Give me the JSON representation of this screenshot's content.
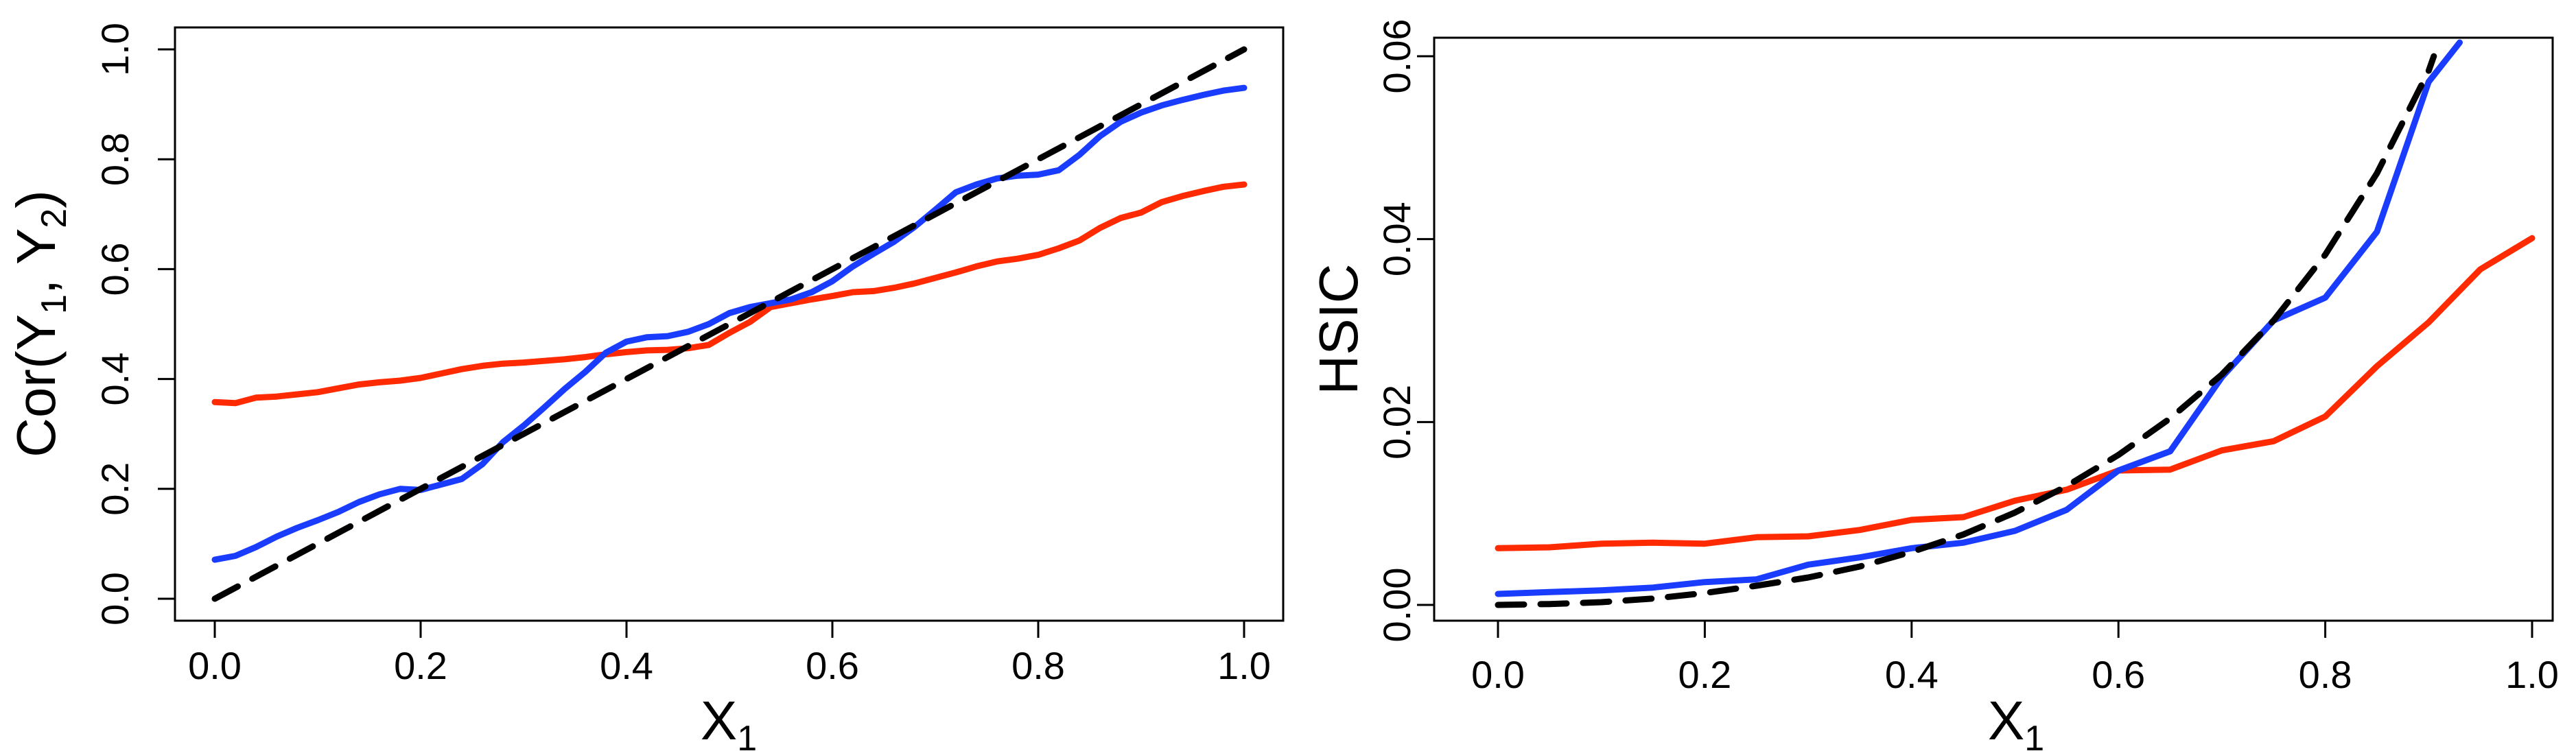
{
  "chart_data": [
    {
      "type": "line",
      "title": "",
      "xlabel": "X",
      "xlabel_sub": "1",
      "ylabel": "Cor(Y",
      "ylabel_sub1": "1",
      "ylabel_mid": ", Y",
      "ylabel_sub2": "2",
      "ylabel_end": ")",
      "xlim": [
        0,
        1
      ],
      "ylim": [
        0,
        1
      ],
      "xticks": [
        0.0,
        0.2,
        0.4,
        0.6,
        0.8,
        1.0
      ],
      "xtick_labels": [
        "0.0",
        "0.2",
        "0.4",
        "0.6",
        "0.8",
        "1.0"
      ],
      "yticks": [
        0.0,
        0.2,
        0.4,
        0.6,
        0.8,
        1.0
      ],
      "ytick_labels": [
        "0.0",
        "0.2",
        "0.4",
        "0.6",
        "0.8",
        "1.0"
      ],
      "grid": false,
      "series": [
        {
          "color": "#ff2a00",
          "dash": "solid",
          "x": [
            0.0,
            0.02,
            0.04,
            0.06,
            0.08,
            0.1,
            0.12,
            0.14,
            0.16,
            0.18,
            0.2,
            0.22,
            0.24,
            0.26,
            0.28,
            0.3,
            0.32,
            0.34,
            0.36,
            0.38,
            0.4,
            0.42,
            0.44,
            0.46,
            0.48,
            0.5,
            0.52,
            0.54,
            0.56,
            0.58,
            0.6,
            0.62,
            0.64,
            0.66,
            0.68,
            0.7,
            0.72,
            0.74,
            0.76,
            0.78,
            0.8,
            0.82,
            0.84,
            0.86,
            0.88,
            0.9,
            0.92,
            0.94,
            0.96,
            0.98,
            1.0
          ],
          "y": [
            0.358,
            0.356,
            0.366,
            0.368,
            0.372,
            0.376,
            0.383,
            0.39,
            0.394,
            0.397,
            0.402,
            0.41,
            0.418,
            0.424,
            0.428,
            0.43,
            0.433,
            0.436,
            0.44,
            0.445,
            0.449,
            0.452,
            0.453,
            0.456,
            0.462,
            0.484,
            0.504,
            0.531,
            0.538,
            0.545,
            0.551,
            0.558,
            0.56,
            0.566,
            0.574,
            0.584,
            0.594,
            0.605,
            0.614,
            0.619,
            0.626,
            0.638,
            0.652,
            0.675,
            0.693,
            0.703,
            0.722,
            0.733,
            0.742,
            0.75,
            0.754
          ]
        },
        {
          "color": "#1a3cff",
          "dash": "solid",
          "x": [
            0.0,
            0.02,
            0.04,
            0.06,
            0.08,
            0.1,
            0.12,
            0.14,
            0.16,
            0.18,
            0.2,
            0.22,
            0.24,
            0.26,
            0.28,
            0.3,
            0.32,
            0.34,
            0.36,
            0.38,
            0.4,
            0.42,
            0.44,
            0.46,
            0.48,
            0.5,
            0.52,
            0.54,
            0.56,
            0.58,
            0.6,
            0.62,
            0.64,
            0.66,
            0.68,
            0.7,
            0.72,
            0.74,
            0.76,
            0.78,
            0.8,
            0.82,
            0.84,
            0.86,
            0.88,
            0.9,
            0.92,
            0.94,
            0.96,
            0.98,
            1.0
          ],
          "y": [
            0.071,
            0.078,
            0.094,
            0.113,
            0.129,
            0.143,
            0.158,
            0.176,
            0.19,
            0.2,
            0.198,
            0.208,
            0.218,
            0.245,
            0.285,
            0.315,
            0.348,
            0.382,
            0.413,
            0.448,
            0.468,
            0.476,
            0.478,
            0.486,
            0.5,
            0.52,
            0.531,
            0.538,
            0.545,
            0.558,
            0.578,
            0.605,
            0.628,
            0.65,
            0.677,
            0.708,
            0.74,
            0.754,
            0.765,
            0.77,
            0.772,
            0.78,
            0.808,
            0.842,
            0.868,
            0.885,
            0.898,
            0.908,
            0.917,
            0.925,
            0.93
          ]
        },
        {
          "color": "#000000",
          "dash": "dashed",
          "x": [
            0.0,
            1.0
          ],
          "y": [
            0.0,
            1.0
          ]
        }
      ]
    },
    {
      "type": "line",
      "title": "",
      "xlabel": "X",
      "xlabel_sub": "1",
      "ylabel": "HSIC",
      "xlim": [
        0,
        1
      ],
      "ylim": [
        0,
        0.06
      ],
      "xticks": [
        0.0,
        0.2,
        0.4,
        0.6,
        0.8,
        1.0
      ],
      "xtick_labels": [
        "0.0",
        "0.2",
        "0.4",
        "0.6",
        "0.8",
        "1.0"
      ],
      "yticks": [
        0.0,
        0.02,
        0.04,
        0.06
      ],
      "ytick_labels": [
        "0.00",
        "0.02",
        "0.04",
        "0.06"
      ],
      "grid": false,
      "series": [
        {
          "color": "#ff2a00",
          "dash": "solid",
          "x": [
            0.0,
            0.05,
            0.1,
            0.15,
            0.2,
            0.25,
            0.3,
            0.35,
            0.4,
            0.45,
            0.5,
            0.55,
            0.6,
            0.65,
            0.7,
            0.75,
            0.8,
            0.85,
            0.9,
            0.95,
            1.0
          ],
          "y": [
            0.0062,
            0.0063,
            0.0067,
            0.0068,
            0.0067,
            0.0074,
            0.0075,
            0.0082,
            0.0093,
            0.0096,
            0.0114,
            0.0126,
            0.0147,
            0.0148,
            0.0169,
            0.0179,
            0.0206,
            0.0261,
            0.0309,
            0.0367,
            0.0401
          ]
        },
        {
          "color": "#1a3cff",
          "dash": "solid",
          "x": [
            0.0,
            0.05,
            0.1,
            0.15,
            0.2,
            0.25,
            0.3,
            0.35,
            0.4,
            0.45,
            0.5,
            0.55,
            0.6,
            0.65,
            0.7,
            0.75,
            0.8,
            0.85,
            0.9,
            0.93
          ],
          "y": [
            0.0012,
            0.0014,
            0.0016,
            0.0019,
            0.0025,
            0.0028,
            0.0044,
            0.0052,
            0.0062,
            0.0068,
            0.0081,
            0.0104,
            0.0147,
            0.0168,
            0.0249,
            0.0311,
            0.0336,
            0.0408,
            0.0572,
            0.0615
          ]
        },
        {
          "color": "#000000",
          "dash": "dashed",
          "x": [
            0.0,
            0.05,
            0.1,
            0.15,
            0.2,
            0.25,
            0.3,
            0.35,
            0.4,
            0.45,
            0.5,
            0.55,
            0.6,
            0.65,
            0.7,
            0.75,
            0.8,
            0.85,
            0.9,
            0.905
          ],
          "y": [
            0.0,
            0.0001,
            0.0003,
            0.0007,
            0.0013,
            0.0021,
            0.003,
            0.0042,
            0.0058,
            0.0077,
            0.0101,
            0.013,
            0.0164,
            0.0204,
            0.0252,
            0.0311,
            0.0383,
            0.0472,
            0.0584,
            0.06
          ]
        }
      ]
    }
  ]
}
